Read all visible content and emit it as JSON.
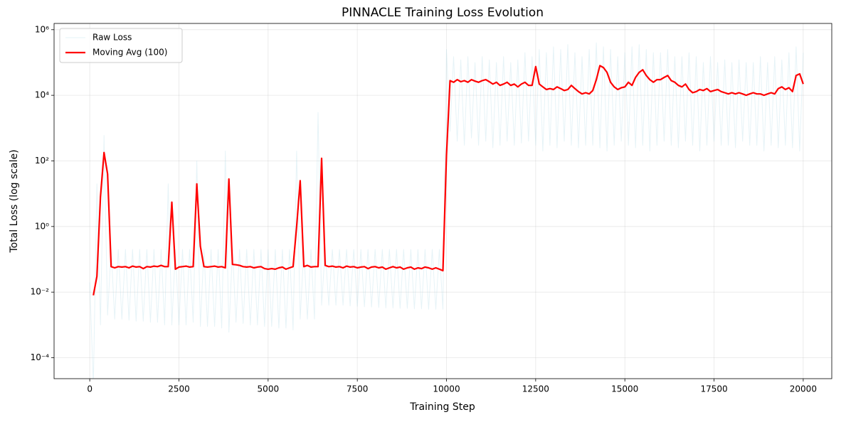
{
  "chart_data": {
    "type": "line",
    "title": "PINNACLE Training Loss Evolution",
    "x_label": "Training Step",
    "y_label": "Total Loss (log scale)",
    "log_y": true,
    "grid": true,
    "legend": "upper left",
    "xlim": [
      -1000,
      20800
    ],
    "ylim": [
      2.3e-05,
      1550000
    ],
    "xticks": [
      0,
      2500,
      5000,
      7500,
      10000,
      12500,
      15000,
      17500,
      20000
    ],
    "yticks": [
      {
        "value": 0.0001,
        "label": "10⁻⁴"
      },
      {
        "value": 0.01,
        "label": "10⁻²"
      },
      {
        "value": 1,
        "label": "10⁰"
      },
      {
        "value": 100,
        "label": "10²"
      },
      {
        "value": 10000,
        "label": "10⁴"
      },
      {
        "value": 1000000,
        "label": "10⁶"
      }
    ],
    "x": [
      0,
      100,
      200,
      300,
      400,
      500,
      600,
      700,
      800,
      900,
      1000,
      1100,
      1200,
      1300,
      1400,
      1500,
      1600,
      1700,
      1800,
      1900,
      2000,
      2100,
      2200,
      2300,
      2400,
      2500,
      2600,
      2700,
      2800,
      2900,
      3000,
      3100,
      3200,
      3300,
      3400,
      3500,
      3600,
      3700,
      3800,
      3900,
      4000,
      4100,
      4200,
      4300,
      4400,
      4500,
      4600,
      4700,
      4800,
      4900,
      5000,
      5100,
      5200,
      5300,
      5400,
      5500,
      5600,
      5700,
      5800,
      5900,
      6000,
      6100,
      6200,
      6300,
      6400,
      6500,
      6600,
      6700,
      6800,
      6900,
      7000,
      7100,
      7200,
      7300,
      7400,
      7500,
      7600,
      7700,
      7800,
      7900,
      8000,
      8100,
      8200,
      8300,
      8400,
      8500,
      8600,
      8700,
      8800,
      8900,
      9000,
      9100,
      9200,
      9300,
      9400,
      9500,
      9600,
      9700,
      9800,
      9900,
      10000,
      10100,
      10200,
      10300,
      10400,
      10500,
      10600,
      10700,
      10800,
      10900,
      11000,
      11100,
      11200,
      11300,
      11400,
      11500,
      11600,
      11700,
      11800,
      11900,
      12000,
      12100,
      12200,
      12300,
      12400,
      12500,
      12600,
      12700,
      12800,
      12900,
      13000,
      13100,
      13200,
      13300,
      13400,
      13500,
      13600,
      13700,
      13800,
      13900,
      14000,
      14100,
      14200,
      14300,
      14400,
      14500,
      14600,
      14700,
      14800,
      14900,
      15000,
      15100,
      15200,
      15300,
      15400,
      15500,
      15600,
      15700,
      15800,
      15900,
      16000,
      16100,
      16200,
      16300,
      16400,
      16500,
      16600,
      16700,
      16800,
      16900,
      17000,
      17100,
      17200,
      17300,
      17400,
      17500,
      17600,
      17700,
      17800,
      17900,
      18000,
      18100,
      18200,
      18300,
      18400,
      18500,
      18600,
      18700,
      18800,
      18900,
      19000,
      19100,
      19200,
      19300,
      19400,
      19500,
      19600,
      19700,
      19800,
      19900,
      20000
    ],
    "series": [
      {
        "name": "Raw Loss",
        "color": "#add8e6",
        "opacity": 0.3,
        "width": 1,
        "values": [
          0.02,
          1.5e-05,
          20,
          0.001,
          600,
          0.002,
          0.2,
          0.0015,
          0.2,
          0.0015,
          0.2,
          0.0014,
          0.2,
          0.0013,
          0.2,
          0.0013,
          0.2,
          0.0012,
          0.2,
          0.0012,
          0.2,
          0.001,
          20,
          0.001,
          0.2,
          0.001,
          0.2,
          0.001,
          0.2,
          0.0012,
          100,
          0.0009,
          0.2,
          0.0009,
          0.2,
          0.0009,
          0.2,
          0.0008,
          200,
          0.0006,
          0.2,
          0.0012,
          0.2,
          0.0011,
          0.2,
          0.001,
          0.2,
          0.001,
          0.2,
          0.0009,
          0.2,
          0.0009,
          0.2,
          0.0008,
          0.2,
          0.0008,
          0.2,
          0.0007,
          200,
          0.0015,
          0.2,
          0.0015,
          0.2,
          0.0015,
          3000,
          0.004,
          0.2,
          0.004,
          0.2,
          0.004,
          0.2,
          0.004,
          0.2,
          0.0038,
          0.2,
          0.0037,
          0.2,
          0.0036,
          0.2,
          0.0035,
          0.2,
          0.0034,
          0.2,
          0.0033,
          0.2,
          0.0033,
          0.2,
          0.0032,
          0.2,
          0.0032,
          0.2,
          0.0031,
          0.2,
          0.0031,
          0.2,
          0.003,
          0.2,
          0.003,
          0.2,
          0.003,
          250000,
          800,
          150000,
          400,
          120000,
          300,
          150000,
          500,
          100000,
          300,
          150000,
          400,
          120000,
          250,
          100000,
          300,
          150000,
          400,
          100000,
          300,
          120000,
          350,
          200000,
          400,
          150000,
          300,
          250000,
          200,
          200000,
          300,
          300000,
          250,
          250000,
          400,
          350000,
          300,
          200000,
          250,
          150000,
          300,
          250000,
          300,
          400000,
          250,
          300000,
          200,
          250000,
          300,
          150000,
          400,
          200000,
          300,
          300000,
          250,
          350000,
          300,
          250000,
          200,
          200000,
          300,
          200000,
          400,
          250000,
          300,
          150000,
          250,
          150000,
          400,
          200000,
          300,
          150000,
          200,
          100000,
          300,
          150000,
          400,
          100000,
          300,
          120000,
          300,
          100000,
          250,
          120000,
          400,
          100000,
          300,
          100000,
          300,
          150000,
          200,
          100000,
          300,
          150000,
          250,
          120000,
          300,
          200000,
          250,
          300000,
          200,
          200000
        ]
      },
      {
        "name": "Moving Avg (100)",
        "color": "#ff0000",
        "opacity": 1,
        "width": 2.2,
        "values": [
          null,
          0.008,
          0.03,
          8,
          180,
          40,
          0.06,
          0.055,
          0.06,
          0.058,
          0.06,
          0.055,
          0.062,
          0.058,
          0.06,
          0.052,
          0.06,
          0.058,
          0.062,
          0.06,
          0.065,
          0.06,
          0.06,
          5.5,
          0.05,
          0.058,
          0.06,
          0.062,
          0.058,
          0.06,
          20,
          0.25,
          0.06,
          0.058,
          0.06,
          0.062,
          0.058,
          0.06,
          0.055,
          28,
          0.07,
          0.068,
          0.065,
          0.06,
          0.058,
          0.06,
          0.055,
          0.058,
          0.06,
          0.052,
          0.05,
          0.052,
          0.05,
          0.055,
          0.058,
          0.05,
          0.055,
          0.06,
          1,
          25,
          0.06,
          0.065,
          0.058,
          0.06,
          0.06,
          120,
          0.065,
          0.06,
          0.062,
          0.058,
          0.06,
          0.055,
          0.062,
          0.058,
          0.06,
          0.055,
          0.058,
          0.06,
          0.052,
          0.058,
          0.06,
          0.055,
          0.058,
          0.05,
          0.055,
          0.06,
          0.055,
          0.058,
          0.05,
          0.055,
          0.058,
          0.05,
          0.055,
          0.052,
          0.058,
          0.055,
          0.05,
          0.055,
          0.05,
          0.045,
          150,
          28000,
          25000,
          30000,
          26000,
          28000,
          25000,
          30000,
          27000,
          25000,
          28000,
          30000,
          26000,
          22000,
          25000,
          20000,
          22000,
          25000,
          20000,
          22000,
          18000,
          22000,
          25000,
          20000,
          20000,
          75000,
          22000,
          18000,
          15000,
          16000,
          15000,
          18000,
          16000,
          14000,
          15000,
          20000,
          16000,
          13000,
          11000,
          12000,
          11000,
          14000,
          30000,
          80000,
          70000,
          50000,
          25000,
          18000,
          15000,
          17000,
          18000,
          25000,
          20000,
          35000,
          50000,
          60000,
          40000,
          30000,
          25000,
          30000,
          30000,
          35000,
          40000,
          28000,
          25000,
          20000,
          18000,
          22000,
          15000,
          12000,
          13000,
          15000,
          14000,
          16000,
          13000,
          14000,
          15000,
          13000,
          12000,
          11000,
          12000,
          11000,
          12000,
          11000,
          10000,
          11000,
          12000,
          11000,
          11000,
          10000,
          11000,
          12000,
          11000,
          16000,
          18000,
          15000,
          17000,
          13000,
          40000,
          45000,
          22000
        ]
      }
    ]
  }
}
